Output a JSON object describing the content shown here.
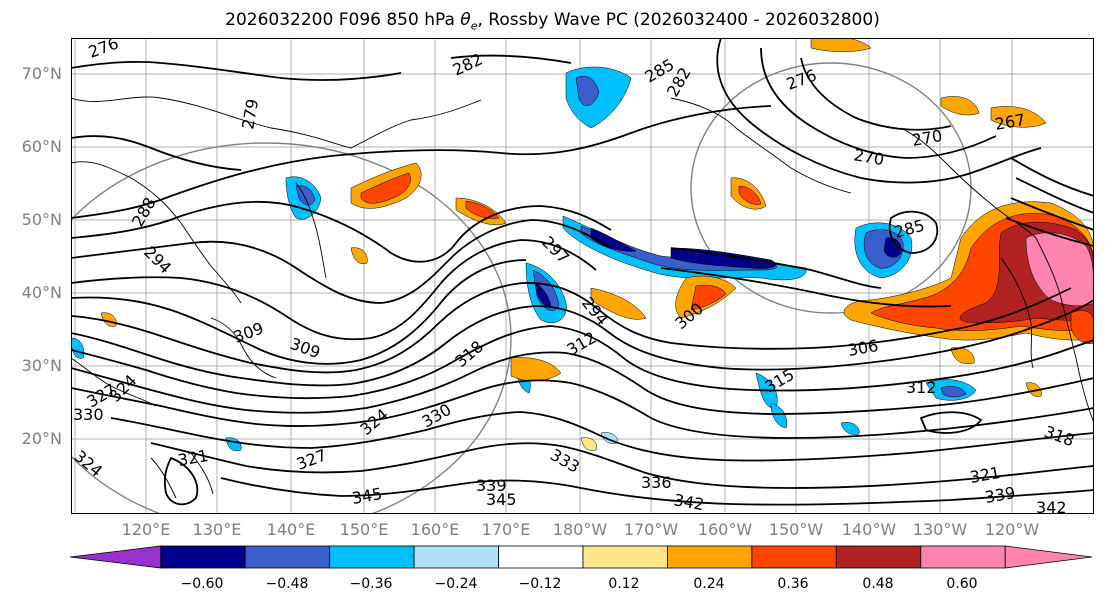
{
  "title": "2026032200 F096 850 hPa θe, Rossby Wave PC (2026032400 - 2026032800)",
  "title_main": "2026032200 F096 850 hPa ",
  "title_theta": "θ",
  "title_sub": "e",
  "title_rest": ", Rossby Wave PC (2026032400 - 2026032800)",
  "lat_labels": [
    "70°N",
    "60°N",
    "50°N",
    "40°N",
    "30°N",
    "20°N"
  ],
  "lon_labels": [
    "120°E",
    "130°E",
    "140°E",
    "150°E",
    "160°E",
    "170°E",
    "180°W",
    "170°W",
    "160°W",
    "150°W",
    "140°W",
    "130°W",
    "120°W"
  ],
  "contour_labels": [
    "276",
    "282",
    "285",
    "282",
    "276",
    "279",
    "267",
    "270",
    "270",
    "288",
    "294",
    "297",
    "294",
    "285",
    "300",
    "306",
    "309",
    "309",
    "312",
    "312",
    "315",
    "318",
    "318",
    "321",
    "324",
    "324",
    "327",
    "330",
    "333",
    "336",
    "339",
    "339",
    "342",
    "342",
    "345",
    "345",
    "330",
    "327",
    "324",
    "321"
  ],
  "colorbar": {
    "ticks": [
      "−0.60",
      "−0.48",
      "−0.36",
      "−0.24",
      "−0.12",
      "0.12",
      "0.24",
      "0.36",
      "0.48",
      "0.60"
    ],
    "colors": [
      "#9932cc",
      "#00008b",
      "#3a5fcd",
      "#00bfff",
      "#b0e0f8",
      "#ffffff",
      "#fde68a",
      "#ffa500",
      "#ff4500",
      "#b22222",
      "#ff85b0",
      "#ff85b0"
    ]
  },
  "colors": {
    "neg_deep": "#00008b",
    "neg_mid": "#3a5fcd",
    "neg_light": "#00bfff",
    "neg_pale": "#b0e0f8",
    "pos_pale": "#fde68a",
    "pos_light": "#ffa500",
    "pos_mid": "#ff4500",
    "pos_deep": "#b22222",
    "pos_max": "#ff85b0"
  }
}
